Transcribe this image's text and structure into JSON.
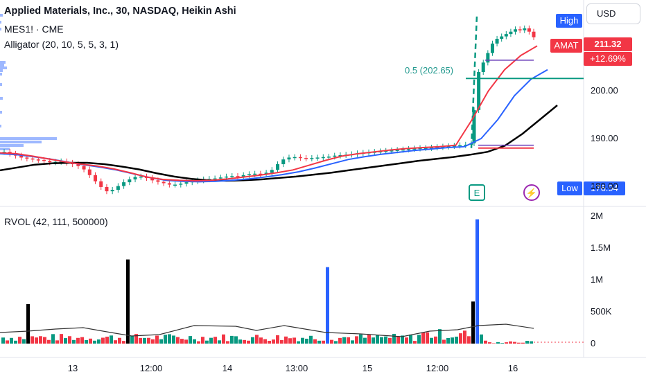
{
  "header": {
    "title": "Applied Materials, Inc., 30, NASDAQ, Heikin Ashi",
    "line2": "MES1! · CME",
    "line3": "Alligator (20, 10, 5, 5, 3, 1)"
  },
  "currency_button": "USD",
  "badges": {
    "high_label": "High",
    "ticker": "AMAT",
    "price": "211.32",
    "change": "+12.69%",
    "low_label": "Low",
    "low_value": "176.94"
  },
  "fib_label": "0.5 (202.65)",
  "events": {
    "earnings_icon": "E",
    "dividend_icon": "lightning"
  },
  "rvol_title": "RVOL (42, 111, 500000)",
  "colors": {
    "up": "#089981",
    "down": "#f23645",
    "blue": "#2962ff",
    "red_line": "#f23645",
    "black": "#000000",
    "fib": "#089981",
    "purple": "#673ab7"
  },
  "chart_data": [
    {
      "type": "candlestick",
      "title": "Applied Materials, Inc., 30, NASDAQ, Heikin Ashi",
      "y_ticks": [
        "180.00",
        "190.00",
        "200.00"
      ],
      "ylim": [
        176,
        218
      ],
      "x_ticks": [
        "13",
        "12:00",
        "14",
        "13:00",
        "15",
        "12:00",
        "16"
      ],
      "high": 216.0,
      "low": 176.94,
      "last": 211.32,
      "change_pct": "+12.69%",
      "fib_level": 202.65,
      "series_closes": [
        187.2,
        186.8,
        186.4,
        186.0,
        185.8,
        185.6,
        185.5,
        185.3,
        185.0,
        185.1,
        185.2,
        184.9,
        184.6,
        184.2,
        183.5,
        182.3,
        181.0,
        179.8,
        178.9,
        179.2,
        180.0,
        180.8,
        181.4,
        181.9,
        182.0,
        181.7,
        181.2,
        180.9,
        180.6,
        180.3,
        180.3,
        180.5,
        180.8,
        181.0,
        181.2,
        181.4,
        181.5,
        181.6,
        181.8,
        182.0,
        182.1,
        182.0,
        182.3,
        182.5,
        182.6,
        182.5,
        182.8,
        183.4,
        184.6,
        185.6,
        186.0,
        186.1,
        185.9,
        185.8,
        185.9,
        186.0,
        186.1,
        186.2,
        186.4,
        186.5,
        186.6,
        186.7,
        186.9,
        187.0,
        187.1,
        187.2,
        187.3,
        187.4,
        187.5,
        187.6,
        187.7,
        187.8,
        187.9,
        188.0,
        188.0,
        188.1,
        188.2,
        188.3,
        188.4,
        188.5,
        188.6,
        188.7,
        189.0,
        196.0,
        204.0,
        206.0,
        208.0,
        210.0,
        211.0,
        211.5,
        212.0,
        212.5,
        213.0,
        212.8,
        213.2,
        212.5,
        211.32
      ],
      "alligator": {
        "red_values": [
          187.0,
          186.8,
          186.3,
          185.7,
          185.1,
          184.6,
          184.2,
          183.6,
          182.8,
          181.9,
          181.4,
          181.2,
          181.1,
          181.2,
          181.5,
          181.9,
          182.3,
          182.8,
          183.4,
          184.4,
          185.4,
          186.3,
          186.8,
          187.2,
          187.6,
          187.9,
          188.1,
          188.3,
          188.6,
          194.0,
          200.0,
          204.5,
          207.5,
          209.5
        ],
        "blue_values": [
          186.8,
          186.6,
          186.2,
          185.7,
          185.1,
          184.5,
          184.0,
          183.4,
          182.6,
          181.8,
          181.2,
          181.0,
          180.9,
          181.0,
          181.2,
          181.5,
          181.9,
          182.4,
          183.0,
          183.8,
          184.7,
          185.6,
          186.2,
          186.7,
          187.1,
          187.5,
          187.8,
          188.1,
          188.3,
          190.0,
          194.0,
          199.0,
          202.5,
          204.5
        ],
        "black_values": [
          183.3,
          183.9,
          184.5,
          184.8,
          184.9,
          184.9,
          184.6,
          184.1,
          183.5,
          182.7,
          182.0,
          181.5,
          181.2,
          181.1,
          181.2,
          181.4,
          181.7,
          182.0,
          182.4,
          182.8,
          183.3,
          183.8,
          184.3,
          184.8,
          185.3,
          185.7,
          186.1,
          186.6,
          187.2,
          188.5,
          191.0,
          194.0,
          197.0
        ]
      }
    },
    {
      "type": "bar",
      "title": "RVOL (42, 111, 500000)",
      "y_ticks": [
        "0",
        "500K",
        "1M",
        "1.5M",
        "2M"
      ],
      "ylim": [
        0,
        2000000
      ],
      "values_note": "volume bars",
      "spikes": [
        {
          "color": "black",
          "value": 620000
        },
        {
          "color": "black",
          "value": 1150000
        },
        {
          "color": "black",
          "value": 1320000
        },
        {
          "color": "blue",
          "value": 750000
        },
        {
          "color": "blue",
          "value": 1100000
        },
        {
          "color": "blue",
          "value": 590000
        },
        {
          "color": "blue",
          "value": 600000
        },
        {
          "color": "blue",
          "value": 1200000
        },
        {
          "color": "blue",
          "value": 580000
        },
        {
          "color": "black",
          "value": 660000
        },
        {
          "color": "blue",
          "value": 1950000
        }
      ]
    }
  ]
}
